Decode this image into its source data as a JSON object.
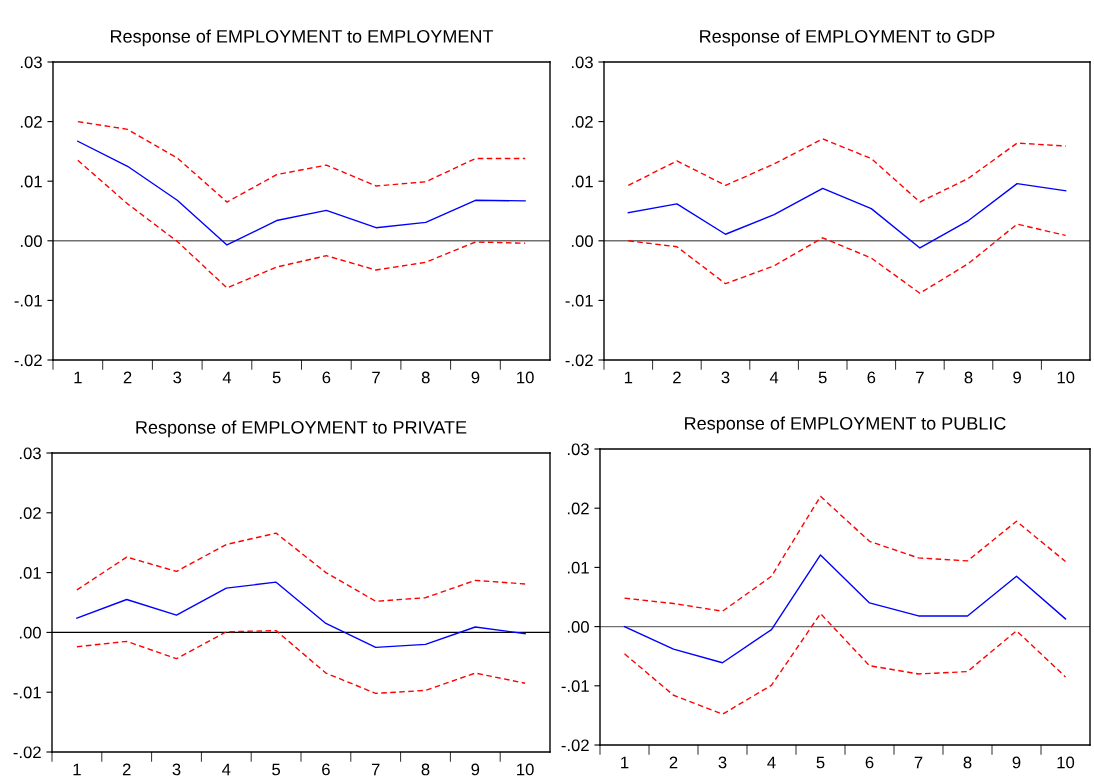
{
  "chart_data": [
    {
      "type": "line",
      "title": "Response of EMPLOYMENT to EMPLOYMENT",
      "categories": [
        "1",
        "2",
        "3",
        "4",
        "5",
        "6",
        "7",
        "8",
        "9",
        "10"
      ],
      "ylim": [
        -0.02,
        0.03
      ],
      "yticks": [
        {
          "value": -0.02,
          "label": "-.02"
        },
        {
          "value": -0.01,
          "label": "-.01"
        },
        {
          "value": 0,
          "label": ".00"
        },
        {
          "value": 0.01,
          "label": ".01"
        },
        {
          "value": 0.02,
          "label": ".02"
        },
        {
          "value": 0.03,
          "label": ".03"
        }
      ],
      "grid": false,
      "ref_lines": [
        {
          "axis": "y",
          "value": 0,
          "color": "#707070"
        }
      ],
      "series": [
        {
          "color": "#0000ff",
          "line_style": "solid",
          "values": [
            0.0167,
            0.0125,
            0.0068,
            -0.0007,
            0.0034,
            0.0051,
            0.0022,
            0.0031,
            0.0068,
            0.0067
          ]
        },
        {
          "color": "#ff0000",
          "line_style": "dashed",
          "values": [
            0.02,
            0.0187,
            0.0139,
            0.0065,
            0.0111,
            0.0127,
            0.0092,
            0.0099,
            0.0138,
            0.0138
          ]
        },
        {
          "color": "#ff0000",
          "line_style": "dashed",
          "values": [
            0.0135,
            0.0062,
            -0.0001,
            -0.0079,
            -0.0044,
            -0.0025,
            -0.0049,
            -0.0036,
            -0.0002,
            -0.0004
          ]
        }
      ]
    },
    {
      "type": "line",
      "title": "Response of EMPLOYMENT to GDP",
      "categories": [
        "1",
        "2",
        "3",
        "4",
        "5",
        "6",
        "7",
        "8",
        "9",
        "10"
      ],
      "ylim": [
        -0.02,
        0.03
      ],
      "yticks": [
        {
          "value": -0.02,
          "label": "-.02"
        },
        {
          "value": -0.01,
          "label": "-.01"
        },
        {
          "value": 0,
          "label": ".00"
        },
        {
          "value": 0.01,
          "label": ".01"
        },
        {
          "value": 0.02,
          "label": ".02"
        },
        {
          "value": 0.03,
          "label": ".03"
        }
      ],
      "grid": false,
      "ref_lines": [
        {
          "axis": "y",
          "value": 0,
          "color": "#707070"
        }
      ],
      "series": [
        {
          "color": "#0000ff",
          "line_style": "solid",
          "values": [
            0.0047,
            0.0062,
            0.0011,
            0.0044,
            0.0088,
            0.0054,
            -0.0012,
            0.0034,
            0.0096,
            0.0084
          ]
        },
        {
          "color": "#ff0000",
          "line_style": "dashed",
          "values": [
            0.0093,
            0.0134,
            0.0093,
            0.0129,
            0.0171,
            0.0138,
            0.0065,
            0.0105,
            0.0164,
            0.0159
          ]
        },
        {
          "color": "#ff0000",
          "line_style": "dashed",
          "values": [
            0.0,
            -0.001,
            -0.0072,
            -0.0042,
            0.0005,
            -0.0029,
            -0.0088,
            -0.0038,
            0.0028,
            0.0009
          ]
        }
      ]
    },
    {
      "type": "line",
      "title": "Response of EMPLOYMENT to PRIVATE",
      "categories": [
        "1",
        "2",
        "3",
        "4",
        "5",
        "6",
        "7",
        "8",
        "9",
        "10"
      ],
      "ylim": [
        -0.02,
        0.03
      ],
      "yticks": [
        {
          "value": -0.02,
          "label": "-.02"
        },
        {
          "value": -0.01,
          "label": "-.01"
        },
        {
          "value": 0,
          "label": ".00"
        },
        {
          "value": 0.01,
          "label": ".01"
        },
        {
          "value": 0.02,
          "label": ".02"
        },
        {
          "value": 0.03,
          "label": ".03"
        }
      ],
      "grid": false,
      "ref_lines": [
        {
          "axis": "y",
          "value": 0,
          "color": "#000000"
        }
      ],
      "series": [
        {
          "color": "#0000ff",
          "line_style": "solid",
          "values": [
            0.0024,
            0.0055,
            0.0029,
            0.0074,
            0.0084,
            0.0015,
            -0.0025,
            -0.002,
            0.0009,
            -0.0002
          ]
        },
        {
          "color": "#ff0000",
          "line_style": "dashed",
          "values": [
            0.0071,
            0.0126,
            0.0102,
            0.0147,
            0.0166,
            0.01,
            0.0052,
            0.0058,
            0.0087,
            0.0081
          ]
        },
        {
          "color": "#ff0000",
          "line_style": "dashed",
          "values": [
            -0.0024,
            -0.0015,
            -0.0044,
            0.0001,
            0.0003,
            -0.0068,
            -0.0102,
            -0.0097,
            -0.0068,
            -0.0085
          ]
        }
      ]
    },
    {
      "type": "line",
      "title": "Response of EMPLOYMENT to PUBLIC",
      "categories": [
        "1",
        "2",
        "3",
        "4",
        "5",
        "6",
        "7",
        "8",
        "9",
        "10"
      ],
      "ylim": [
        -0.02,
        0.03
      ],
      "yticks": [
        {
          "value": -0.02,
          "label": "-.02"
        },
        {
          "value": -0.01,
          "label": "-.01"
        },
        {
          "value": 0,
          "label": ".00"
        },
        {
          "value": 0.01,
          "label": ".01"
        },
        {
          "value": 0.02,
          "label": ".02"
        },
        {
          "value": 0.03,
          "label": ".03"
        }
      ],
      "grid": false,
      "ref_lines": [
        {
          "axis": "y",
          "value": 0,
          "color": "#707070"
        }
      ],
      "series": [
        {
          "color": "#0000ff",
          "line_style": "solid",
          "values": [
            0.0,
            -0.0038,
            -0.0061,
            -0.0005,
            0.0121,
            0.004,
            0.0018,
            0.0018,
            0.0085,
            0.0013
          ]
        },
        {
          "color": "#ff0000",
          "line_style": "dashed",
          "values": [
            0.0048,
            0.0039,
            0.0026,
            0.0085,
            0.022,
            0.0144,
            0.0116,
            0.0111,
            0.0178,
            0.011
          ]
        },
        {
          "color": "#ff0000",
          "line_style": "dashed",
          "values": [
            -0.0046,
            -0.0116,
            -0.0148,
            -0.0099,
            0.0022,
            -0.0066,
            -0.008,
            -0.0076,
            -0.0007,
            -0.0085
          ]
        }
      ]
    }
  ]
}
